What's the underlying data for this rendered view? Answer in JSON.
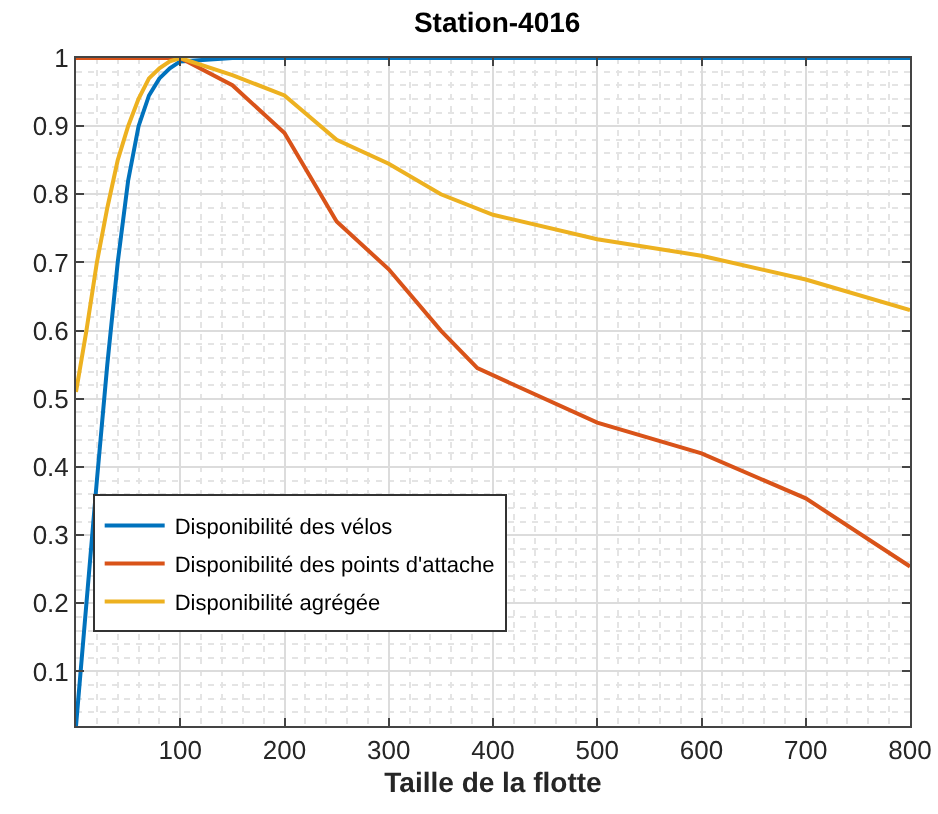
{
  "chart_data": {
    "type": "line",
    "title": "Station-4016",
    "xlabel": "Taille de la flotte",
    "xlim": [
      0,
      800
    ],
    "xticks": [
      100,
      200,
      300,
      400,
      500,
      600,
      700,
      800
    ],
    "ylim": [
      0.02,
      1
    ],
    "yticks": [
      0.1,
      0.2,
      0.3,
      0.4,
      0.5,
      0.6,
      0.7,
      0.8,
      0.9,
      1
    ],
    "grid": true,
    "legend": "bottom left",
    "marker": "none",
    "line_style": "solid",
    "series": [
      {
        "name": "Disponibilité des vélos",
        "color": "#0072bd",
        "x": [
          0,
          10,
          20,
          30,
          40,
          50,
          60,
          70,
          80,
          90,
          100,
          150,
          800
        ],
        "values": [
          0.02,
          0.2,
          0.38,
          0.55,
          0.7,
          0.82,
          0.9,
          0.945,
          0.97,
          0.985,
          0.995,
          1,
          1
        ]
      },
      {
        "name": "Disponibilité des points d'attache",
        "color": "#d95319",
        "x": [
          0,
          100,
          150,
          200,
          250,
          300,
          350,
          385,
          500,
          600,
          700,
          800
        ],
        "values": [
          1,
          1,
          0.96,
          0.89,
          0.76,
          0.69,
          0.6,
          0.545,
          0.465,
          0.42,
          0.354,
          0.254
        ]
      },
      {
        "name": "Disponibilité agrégée",
        "color": "#edb120",
        "x": [
          0,
          10,
          20,
          30,
          40,
          50,
          60,
          70,
          80,
          90,
          100,
          150,
          200,
          250,
          300,
          350,
          400,
          500,
          600,
          700,
          800
        ],
        "values": [
          0.51,
          0.6,
          0.7,
          0.78,
          0.85,
          0.9,
          0.94,
          0.97,
          0.985,
          0.995,
          1,
          0.975,
          0.945,
          0.88,
          0.845,
          0.8,
          0.77,
          0.734,
          0.71,
          0.675,
          0.63
        ]
      }
    ]
  }
}
